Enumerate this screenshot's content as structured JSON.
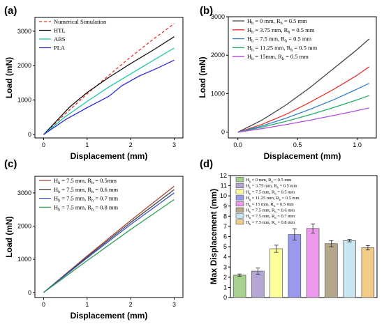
{
  "figure": {
    "colors": {
      "axis": "#000000"
    }
  },
  "chart_data": [
    {
      "panel": "(a)",
      "type": "line",
      "xlabel": "Displacement (mm)",
      "ylabel": "Load (mN)",
      "xlim": [
        -0.2,
        3.2
      ],
      "ylim": [
        -100,
        3400
      ],
      "xticks": [
        "0",
        "1",
        "2",
        "3"
      ],
      "yticks": [
        "0",
        "1000",
        "2000",
        "3000"
      ],
      "legend_position": "top-left",
      "grid": false,
      "series": [
        {
          "name": "Numerical Simulation",
          "color": "#e8342a",
          "dashed": true,
          "x": [
            0,
            0.5,
            1,
            1.5,
            2,
            2.5,
            3
          ],
          "y": [
            0,
            600,
            1180,
            1720,
            2250,
            2750,
            3220
          ]
        },
        {
          "name": "HTL",
          "color": "#111111",
          "dashed": false,
          "x": [
            0,
            0.3,
            0.6,
            1,
            1.5,
            2,
            2.5,
            3
          ],
          "y": [
            0,
            400,
            800,
            1220,
            1660,
            2060,
            2440,
            2840
          ]
        },
        {
          "name": "ABS",
          "color": "#19c8a8",
          "dashed": false,
          "x": [
            0,
            0.5,
            1,
            1.5,
            2,
            2.5,
            3
          ],
          "y": [
            0,
            520,
            960,
            1380,
            1760,
            2140,
            2510
          ]
        },
        {
          "name": "PLA",
          "color": "#2b2bd8",
          "dashed": false,
          "x": [
            0,
            0.5,
            1,
            1.5,
            1.8,
            2.2,
            2.6,
            3
          ],
          "y": [
            0,
            430,
            780,
            1110,
            1420,
            1700,
            1920,
            2160
          ]
        }
      ]
    },
    {
      "panel": "(b)",
      "type": "line",
      "xlabel": "Displacement (mm)",
      "ylabel": "Load (mN)",
      "xlim": [
        -0.08,
        1.16
      ],
      "ylim": [
        -150,
        3000
      ],
      "xticks": [
        "0.0",
        "0.5",
        "1.0"
      ],
      "yticks": [
        "0",
        "1000",
        "2000",
        "3000"
      ],
      "legend_position": "top-left",
      "grid": false,
      "series": [
        {
          "name_parts": [
            "H",
            "h",
            " = 0 mm, R",
            "h",
            " = 0.5 mm"
          ],
          "color": "#444444",
          "x": [
            0,
            0.2,
            0.4,
            0.6,
            0.8,
            1.0,
            1.1
          ],
          "y": [
            0,
            310,
            700,
            1150,
            1650,
            2150,
            2420
          ]
        },
        {
          "name_parts": [
            "H",
            "h",
            " = 3.75 mm, R",
            "h",
            " = 0.5 mm"
          ],
          "color": "#e8342a",
          "x": [
            0,
            0.2,
            0.4,
            0.6,
            0.8,
            1.0,
            1.1
          ],
          "y": [
            0,
            200,
            460,
            770,
            1110,
            1480,
            1700
          ]
        },
        {
          "name_parts": [
            "H",
            "h",
            " = 7.5 mm, R",
            "h",
            " = 0.5 mm"
          ],
          "color": "#2f7fd0",
          "x": [
            0,
            0.2,
            0.4,
            0.6,
            0.8,
            1.0,
            1.1
          ],
          "y": [
            0,
            160,
            360,
            590,
            840,
            1120,
            1270
          ]
        },
        {
          "name_parts": [
            "H",
            "h",
            " = 11.25 mm, R",
            "h",
            " = 0.5 mm"
          ],
          "color": "#22aa66",
          "x": [
            0,
            0.2,
            0.4,
            0.6,
            0.8,
            1.0,
            1.1
          ],
          "y": [
            0,
            130,
            280,
            450,
            640,
            840,
            950
          ]
        },
        {
          "name_parts": [
            "H",
            "h",
            " = 15mm, R",
            "h",
            " = 0.5 mm"
          ],
          "color": "#b04fe0",
          "x": [
            0,
            0.2,
            0.4,
            0.6,
            0.8,
            1.0,
            1.1
          ],
          "y": [
            0,
            90,
            195,
            310,
            435,
            560,
            630
          ]
        }
      ]
    },
    {
      "panel": "(c)",
      "type": "line",
      "xlabel": "Displacement (mm)",
      "ylabel": "Load (mN)",
      "xlim": [
        -0.2,
        3.2
      ],
      "ylim": [
        -150,
        3500
      ],
      "xticks": [
        "0",
        "1",
        "2",
        "3"
      ],
      "yticks": [
        "0",
        "1000",
        "2000",
        "3000"
      ],
      "legend_position": "top-left",
      "grid": false,
      "series": [
        {
          "name_parts": [
            "H",
            "h",
            " = 7.5 mm, R",
            "h",
            " = 0.5mm"
          ],
          "color": "#a0453a",
          "x": [
            0,
            1,
            2,
            3
          ],
          "y": [
            0,
            1100,
            2170,
            3200
          ]
        },
        {
          "name_parts": [
            "H",
            "h",
            " = 7.5 mm, R",
            "h",
            " = 0.6 mm"
          ],
          "color": "#444444",
          "x": [
            0,
            1,
            2,
            3
          ],
          "y": [
            0,
            1070,
            2110,
            3100
          ]
        },
        {
          "name_parts": [
            "H",
            "h",
            " = 7.5 mm, R",
            "h",
            " = 0.7 mm"
          ],
          "color": "#3a55c8",
          "x": [
            0,
            1,
            2,
            3
          ],
          "y": [
            0,
            1040,
            2050,
            3000
          ]
        },
        {
          "name_parts": [
            "H",
            "h",
            " = 7.5 mm, R",
            "h",
            " = 0.8 mm"
          ],
          "color": "#2fa05a",
          "x": [
            0,
            1,
            2,
            3
          ],
          "y": [
            0,
            960,
            1900,
            2800
          ]
        }
      ]
    },
    {
      "panel": "(d)",
      "type": "bar",
      "ylabel": "Max Displacement (mm)",
      "ylim": [
        0,
        12
      ],
      "yticks": [
        "0",
        "1",
        "2",
        "3",
        "4",
        "5",
        "6",
        "7",
        "8",
        "9",
        "10",
        "11",
        "12"
      ],
      "legend_position": "top-left",
      "grid": false,
      "bars": [
        {
          "name_parts": [
            "H",
            "h",
            " = 0 mm, R",
            "h",
            " = 0.5 mm"
          ],
          "color": "#a9d18e",
          "value": 2.2,
          "error": 0.12
        },
        {
          "name_parts": [
            "H",
            "h",
            " = 3.75 mm, R",
            "h",
            " = 0.5 mm"
          ],
          "color": "#b4a7d6",
          "value": 2.6,
          "error": 0.3
        },
        {
          "name_parts": [
            "H",
            "h",
            " = 7.5 mm, R",
            "h",
            " = 0.5 mm"
          ],
          "color": "#ffff99",
          "value": 4.8,
          "error": 0.35
        },
        {
          "name_parts": [
            "H",
            "h",
            " = 11.25 mm, R",
            "h",
            " = 0.5 mm"
          ],
          "color": "#9999ee",
          "value": 6.2,
          "error": 0.55
        },
        {
          "name_parts": [
            "H",
            "h",
            " = 15 mm, R",
            "h",
            " = 0.5 mm"
          ],
          "color": "#ee99ee",
          "value": 6.8,
          "error": 0.45
        },
        {
          "name_parts": [
            "H",
            "h",
            " = 7.5 mm, R",
            "h",
            " = 0.6 mm"
          ],
          "color": "#b5a88a",
          "value": 5.3,
          "error": 0.3
        },
        {
          "name_parts": [
            "H",
            "h",
            " = 7.5 mm, R",
            "h",
            " = 0.7 mm"
          ],
          "color": "#c7e6f2",
          "value": 5.6,
          "error": 0.12
        },
        {
          "name_parts": [
            "H",
            "h",
            " = 7.5 mm, R",
            "h",
            " = 0.8 mm"
          ],
          "color": "#f0cc88",
          "value": 4.9,
          "error": 0.22
        }
      ]
    }
  ]
}
